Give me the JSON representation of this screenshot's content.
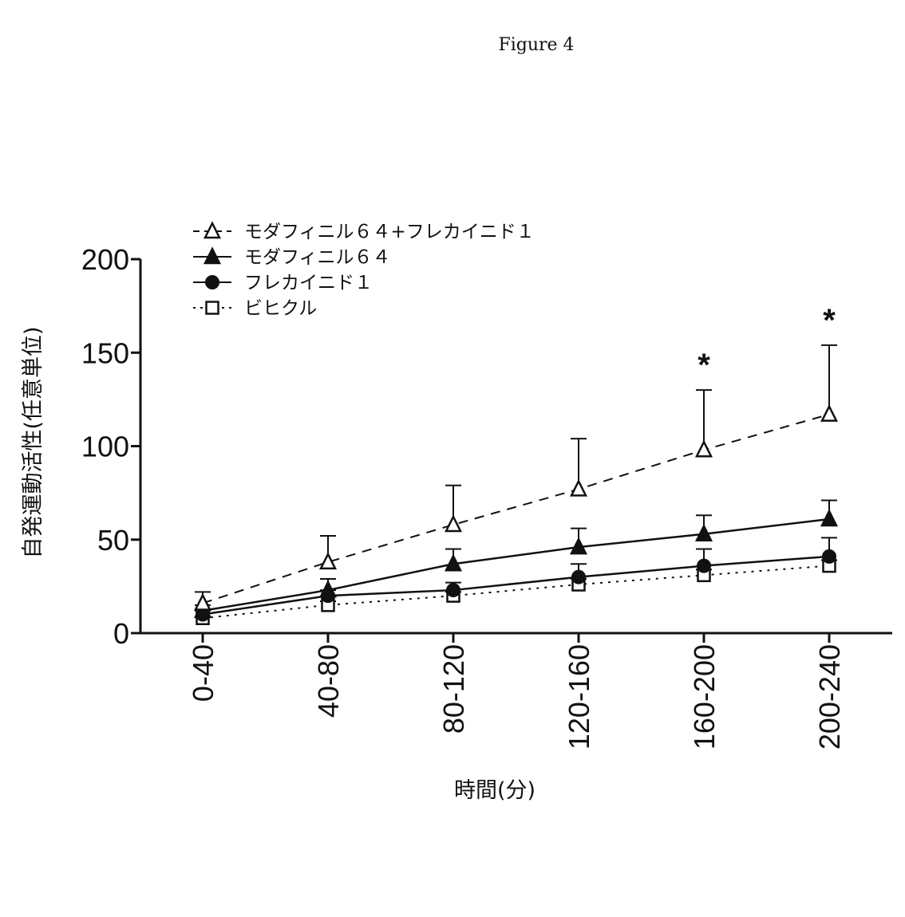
{
  "figure_title": "Figure 4",
  "chart_data": {
    "type": "line",
    "title": "",
    "xlabel": "時間(分)",
    "ylabel": "自発運動活性(任意単位)",
    "categories": [
      "0-40",
      "40-80",
      "80-120",
      "120-160",
      "160-200",
      "200-240"
    ],
    "ylim": [
      0,
      200
    ],
    "yticks": [
      "0",
      "50",
      "100",
      "150",
      "200"
    ],
    "legend_position": "top-left",
    "grid": false,
    "series": [
      {
        "name": "モダフィニル６４+フレカイニド１",
        "marker": "open-triangle",
        "line_style": "dashed",
        "color": "#111111",
        "values": [
          16,
          38,
          58,
          77,
          98,
          117
        ],
        "errors": [
          6,
          14,
          21,
          27,
          32,
          37
        ]
      },
      {
        "name": "モダフィニル６４",
        "marker": "filled-triangle",
        "line_style": "solid",
        "color": "#111111",
        "values": [
          12,
          23,
          37,
          46,
          53,
          61
        ],
        "errors": [
          3,
          6,
          8,
          10,
          10,
          10
        ]
      },
      {
        "name": "フレカイニド１",
        "marker": "filled-circle",
        "line_style": "solid",
        "color": "#111111",
        "values": [
          10,
          20,
          23,
          30,
          36,
          41
        ],
        "errors": [
          2,
          3,
          4,
          7,
          9,
          10
        ]
      },
      {
        "name": "ビヒクル",
        "marker": "open-square",
        "line_style": "dotted",
        "color": "#111111",
        "values": [
          8,
          15,
          20,
          26,
          31,
          36
        ],
        "errors": [
          1,
          2,
          2,
          3,
          3,
          3
        ]
      }
    ],
    "annotations": [
      {
        "category": "160-200",
        "text": "*"
      },
      {
        "category": "200-240",
        "text": "*"
      }
    ]
  }
}
